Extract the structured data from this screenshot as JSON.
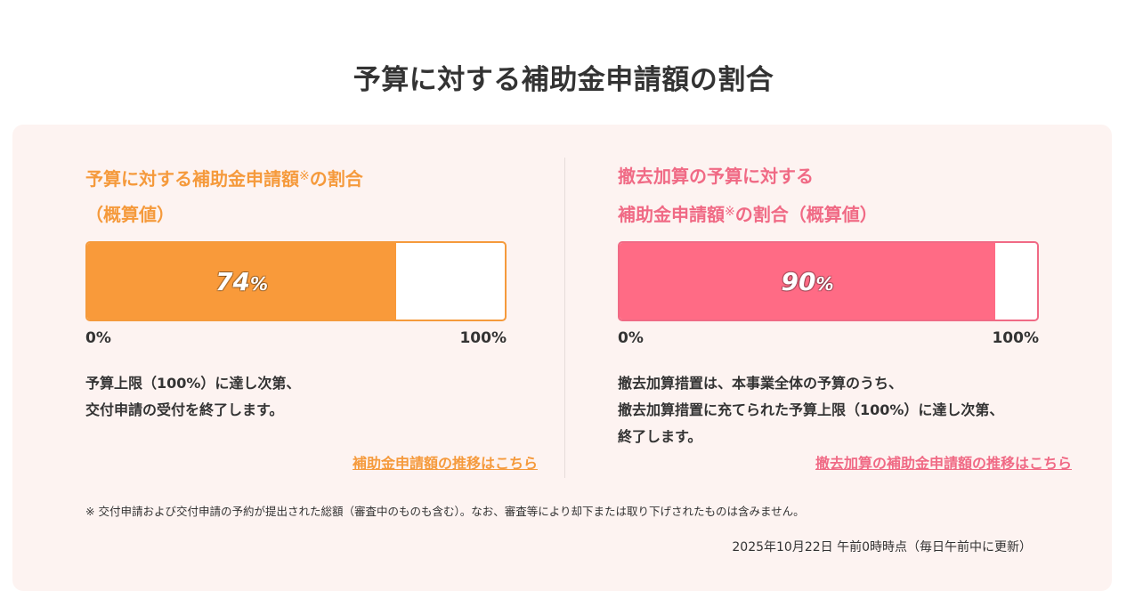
{
  "page_title": "予算に対する補助金申請額の割合",
  "colors": {
    "orange": "#f99a3a",
    "pink": "#ff6b85",
    "panel_bg": "#fdf3f1"
  },
  "left": {
    "heading_line1_a": "予算に対する補助金申請額",
    "heading_mark": "※",
    "heading_line1_b": "の割合",
    "heading_line2": "（概算値）",
    "percent_value": 74,
    "percent_number": "74",
    "percent_sign": "%",
    "scale_min": "0%",
    "scale_max": "100%",
    "desc_line1": "予算上限（100%）に達し次第、",
    "desc_line2": "交付申請の受付を終了します。",
    "link_text": "補助金申請額の推移はこちら"
  },
  "right": {
    "heading_line1": "撤去加算の予算に対する",
    "heading_line2_a": "補助金申請額",
    "heading_mark": "※",
    "heading_line2_b": "の割合（概算値）",
    "percent_value": 90,
    "percent_number": "90",
    "percent_sign": "%",
    "scale_min": "0%",
    "scale_max": "100%",
    "desc_line1": "撤去加算措置は、本事業全体の予算のうち、",
    "desc_line2": "撤去加算措置に充てられた予算上限（100%）に達し次第、",
    "desc_line3": "終了します。",
    "link_text": "撤去加算の補助金申請額の推移はこちら"
  },
  "footnote": "※  交付申請および交付申請の予約が提出された総額（審査中のものも含む）。なお、審査等により却下または取り下げされたものは含みません。",
  "timestamp": "2025年10月22日 午前0時時点（毎日午前中に更新）"
}
